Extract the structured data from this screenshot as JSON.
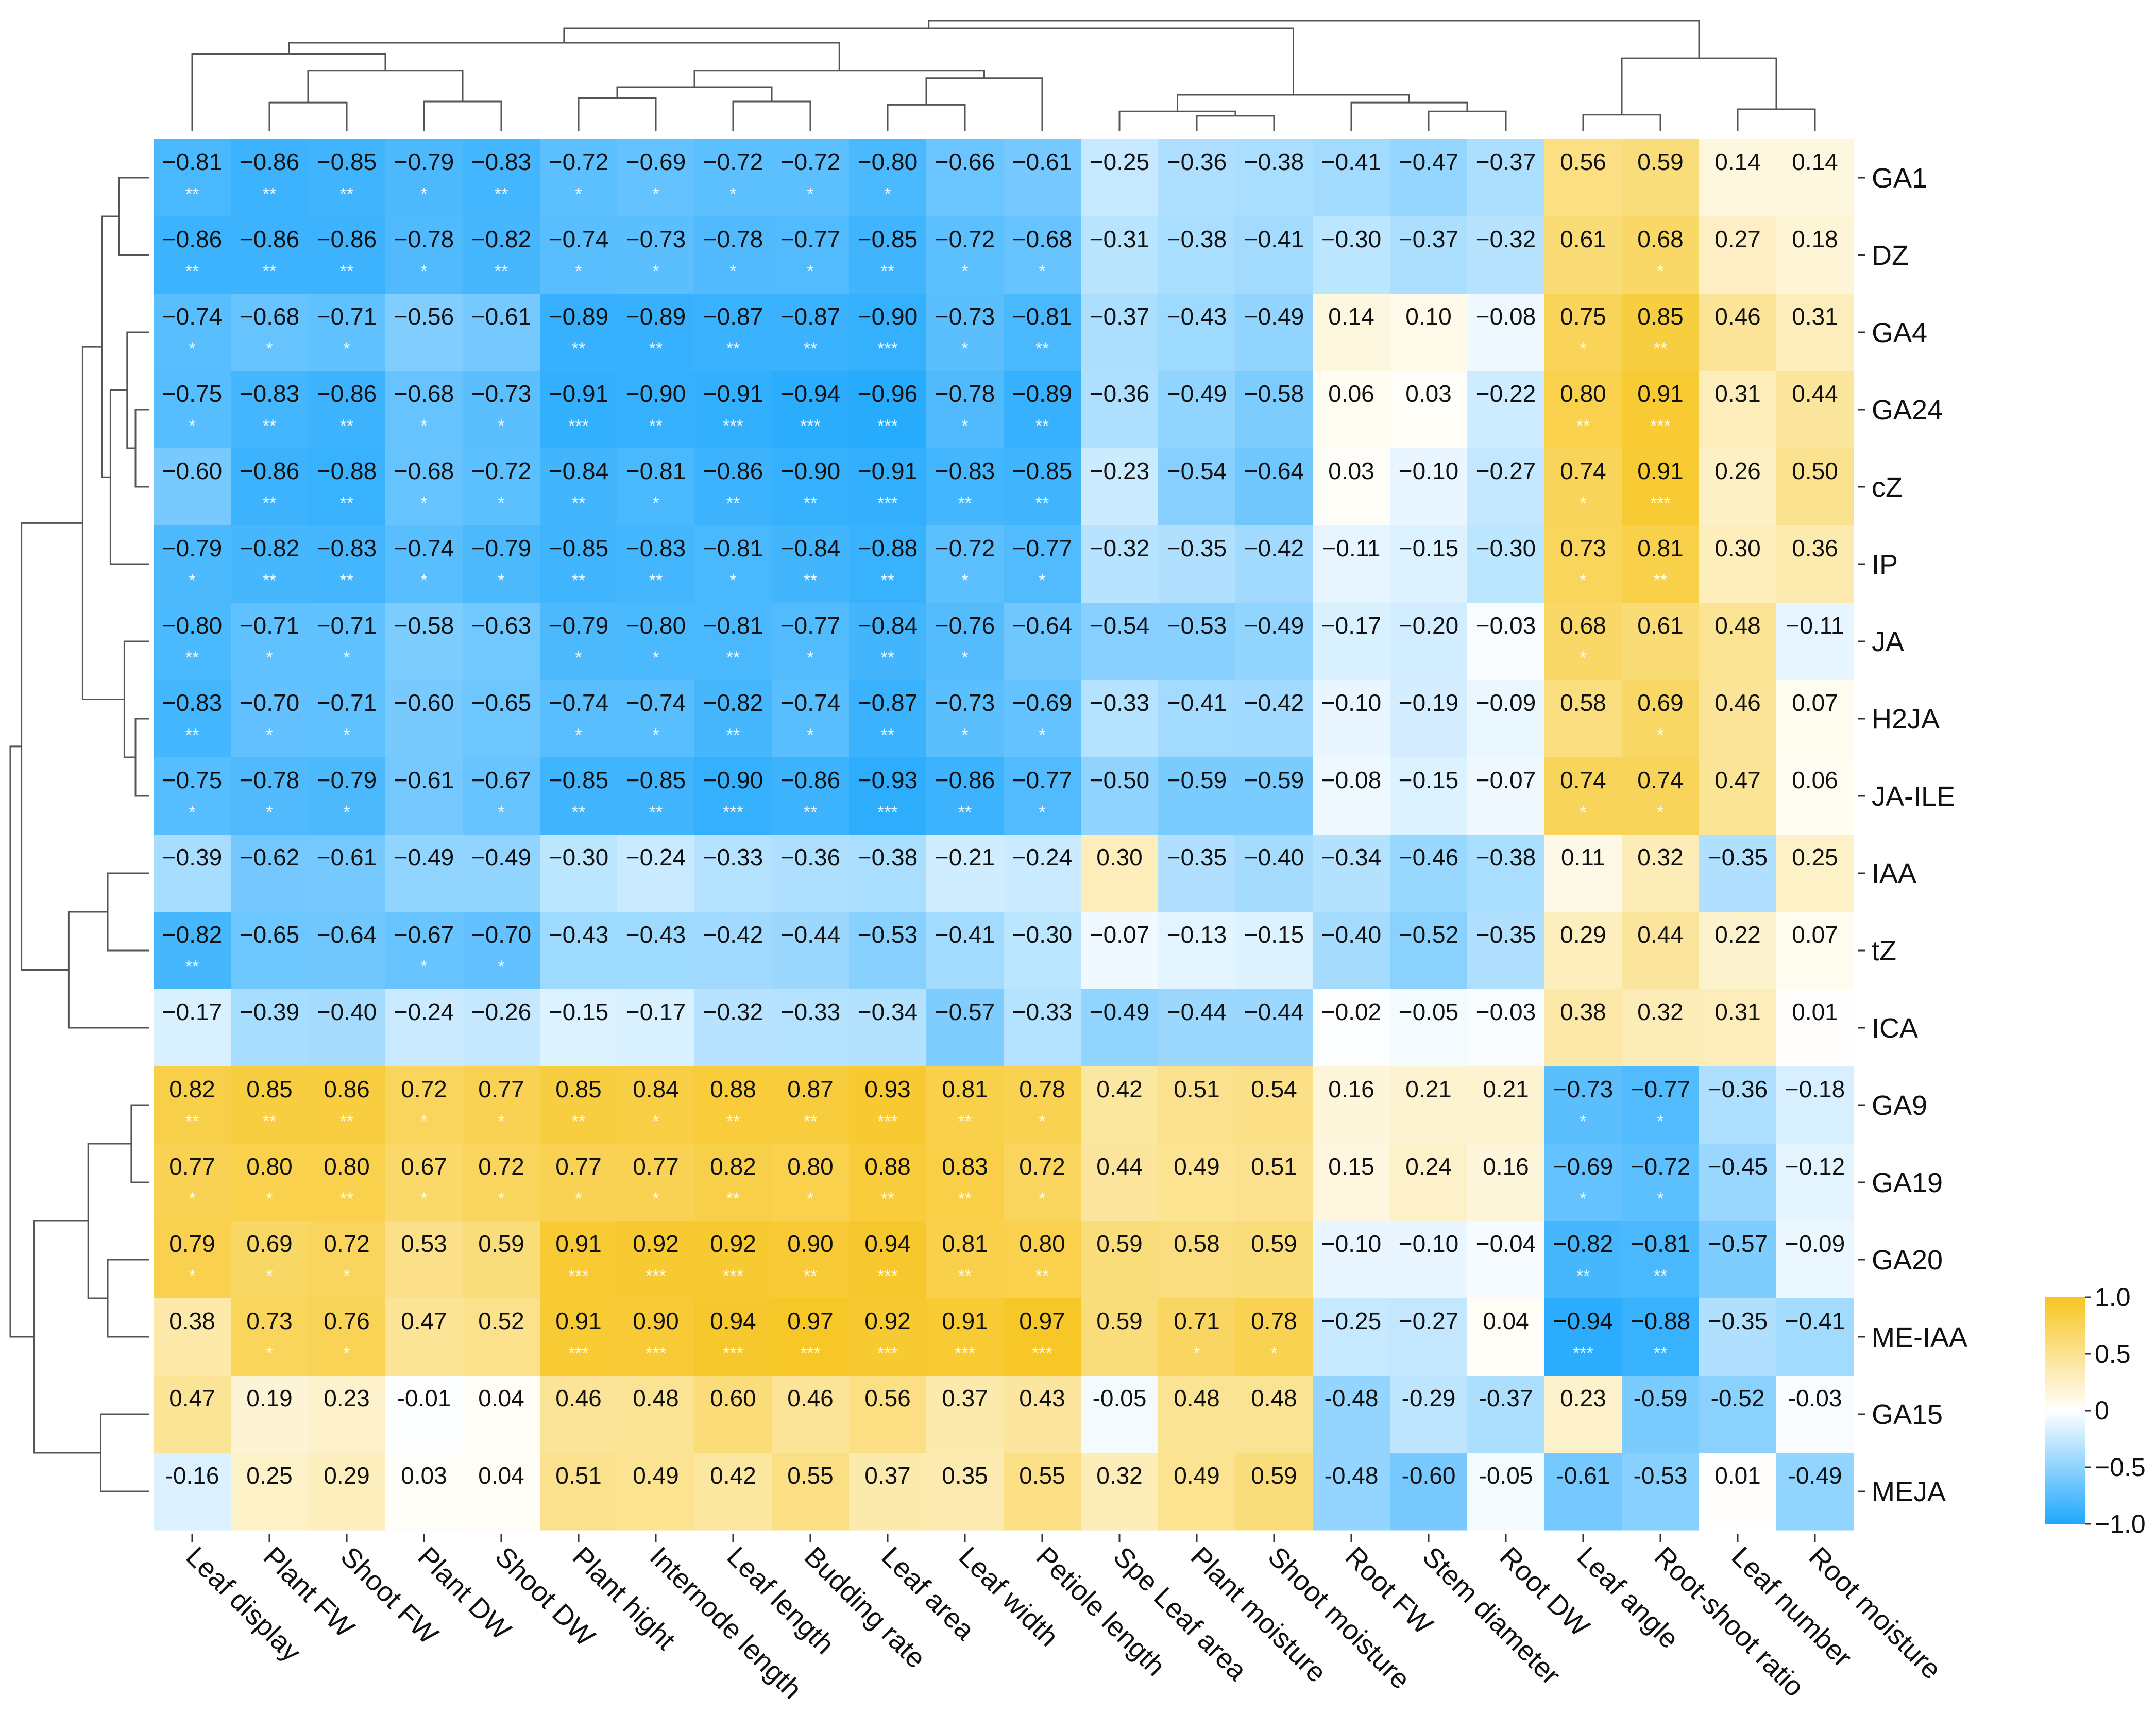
{
  "chart_data": {
    "type": "heatmap",
    "title": "",
    "xlabel": "",
    "ylabel": "",
    "columns": [
      "Leaf display",
      "Plant FW",
      "Shoot FW",
      "Plant DW",
      "Shoot DW",
      "Plant hight",
      "Internode length",
      "Leaf length",
      "Budding rate",
      "Leaf area",
      "Leaf width",
      "Petiole length",
      "Spe Leaf area",
      "Plant moisture",
      "Shoot moisture",
      "Root FW",
      "Stem diameter",
      "Root DW",
      "Leaf angle",
      "Root-shoot ratio",
      "Leaf number",
      "Root moisture"
    ],
    "rows": [
      "GA1",
      "DZ",
      "GA4",
      "GA24",
      "cZ",
      "IP",
      "JA",
      "H2JA",
      "JA-ILE",
      "IAA",
      "tZ",
      "ICA",
      "GA9",
      "GA19",
      "GA20",
      "ME-IAA",
      "GA15",
      "MEJA"
    ],
    "value_labels": [
      [
        "−0.81",
        "−0.86",
        "−0.85",
        "−0.79",
        "−0.83",
        "−0.72",
        "−0.69",
        "−0.72",
        "−0.72",
        "−0.80",
        "−0.66",
        "−0.61",
        "−0.25",
        "−0.36",
        "−0.38",
        "−0.41",
        "−0.47",
        "−0.37",
        "0.56",
        "0.59",
        "0.14",
        "0.14"
      ],
      [
        "−0.86",
        "−0.86",
        "−0.86",
        "−0.78",
        "−0.82",
        "−0.74",
        "−0.73",
        "−0.78",
        "−0.77",
        "−0.85",
        "−0.72",
        "−0.68",
        "−0.31",
        "−0.38",
        "−0.41",
        "−0.30",
        "−0.37",
        "−0.32",
        "0.61",
        "0.68",
        "0.27",
        "0.18"
      ],
      [
        "−0.74",
        "−0.68",
        "−0.71",
        "−0.56",
        "−0.61",
        "−0.89",
        "−0.89",
        "−0.87",
        "−0.87",
        "−0.90",
        "−0.73",
        "−0.81",
        "−0.37",
        "−0.43",
        "−0.49",
        "0.14",
        "0.10",
        "−0.08",
        "0.75",
        "0.85",
        "0.46",
        "0.31"
      ],
      [
        "−0.75",
        "−0.83",
        "−0.86",
        "−0.68",
        "−0.73",
        "−0.91",
        "−0.90",
        "−0.91",
        "−0.94",
        "−0.96",
        "−0.78",
        "−0.89",
        "−0.36",
        "−0.49",
        "−0.58",
        "0.06",
        "0.03",
        "−0.22",
        "0.80",
        "0.91",
        "0.31",
        "0.44"
      ],
      [
        "−0.60",
        "−0.86",
        "−0.88",
        "−0.68",
        "−0.72",
        "−0.84",
        "−0.81",
        "−0.86",
        "−0.90",
        "−0.91",
        "−0.83",
        "−0.85",
        "−0.23",
        "−0.54",
        "−0.64",
        "0.03",
        "−0.10",
        "−0.27",
        "0.74",
        "0.91",
        "0.26",
        "0.50"
      ],
      [
        "−0.79",
        "−0.82",
        "−0.83",
        "−0.74",
        "−0.79",
        "−0.85",
        "−0.83",
        "−0.81",
        "−0.84",
        "−0.88",
        "−0.72",
        "−0.77",
        "−0.32",
        "−0.35",
        "−0.42",
        "−0.11",
        "−0.15",
        "−0.30",
        "0.73",
        "0.81",
        "0.30",
        "0.36"
      ],
      [
        "−0.80",
        "−0.71",
        "−0.71",
        "−0.58",
        "−0.63",
        "−0.79",
        "−0.80",
        "−0.81",
        "−0.77",
        "−0.84",
        "−0.76",
        "−0.64",
        "−0.54",
        "−0.53",
        "−0.49",
        "−0.17",
        "−0.20",
        "−0.03",
        "0.68",
        "0.61",
        "0.48",
        "−0.11"
      ],
      [
        "−0.83",
        "−0.70",
        "−0.71",
        "−0.60",
        "−0.65",
        "−0.74",
        "−0.74",
        "−0.82",
        "−0.74",
        "−0.87",
        "−0.73",
        "−0.69",
        "−0.33",
        "−0.41",
        "−0.42",
        "−0.10",
        "−0.19",
        "−0.09",
        "0.58",
        "0.69",
        "0.46",
        "0.07"
      ],
      [
        "−0.75",
        "−0.78",
        "−0.79",
        "−0.61",
        "−0.67",
        "−0.85",
        "−0.85",
        "−0.90",
        "−0.86",
        "−0.93",
        "−0.86",
        "−0.77",
        "−0.50",
        "−0.59",
        "−0.59",
        "−0.08",
        "−0.15",
        "−0.07",
        "0.74",
        "0.74",
        "0.47",
        "0.06"
      ],
      [
        "−0.39",
        "−0.62",
        "−0.61",
        "−0.49",
        "−0.49",
        "−0.30",
        "−0.24",
        "−0.33",
        "−0.36",
        "−0.38",
        "−0.21",
        "−0.24",
        "0.30",
        "−0.35",
        "−0.40",
        "−0.34",
        "−0.46",
        "−0.38",
        "0.11",
        "0.32",
        "−0.35",
        "0.25"
      ],
      [
        "−0.82",
        "−0.65",
        "−0.64",
        "−0.67",
        "−0.70",
        "−0.43",
        "−0.43",
        "−0.42",
        "−0.44",
        "−0.53",
        "−0.41",
        "−0.30",
        "−0.07",
        "−0.13",
        "−0.15",
        "−0.40",
        "−0.52",
        "−0.35",
        "0.29",
        "0.44",
        "0.22",
        "0.07"
      ],
      [
        "−0.17",
        "−0.39",
        "−0.40",
        "−0.24",
        "−0.26",
        "−0.15",
        "−0.17",
        "−0.32",
        "−0.33",
        "−0.34",
        "−0.57",
        "−0.33",
        "−0.49",
        "−0.44",
        "−0.44",
        "−0.02",
        "−0.05",
        "−0.03",
        "0.38",
        "0.32",
        "0.31",
        "0.01"
      ],
      [
        "0.82",
        "0.85",
        "0.86",
        "0.72",
        "0.77",
        "0.85",
        "0.84",
        "0.88",
        "0.87",
        "0.93",
        "0.81",
        "0.78",
        "0.42",
        "0.51",
        "0.54",
        "0.16",
        "0.21",
        "0.21",
        "−0.73",
        "−0.77",
        "−0.36",
        "−0.18"
      ],
      [
        "0.77",
        "0.80",
        "0.80",
        "0.67",
        "0.72",
        "0.77",
        "0.77",
        "0.82",
        "0.80",
        "0.88",
        "0.83",
        "0.72",
        "0.44",
        "0.49",
        "0.51",
        "0.15",
        "0.24",
        "0.16",
        "−0.69",
        "−0.72",
        "−0.45",
        "−0.12"
      ],
      [
        "0.79",
        "0.69",
        "0.72",
        "0.53",
        "0.59",
        "0.91",
        "0.92",
        "0.92",
        "0.90",
        "0.94",
        "0.81",
        "0.80",
        "0.59",
        "0.58",
        "0.59",
        "−0.10",
        "−0.10",
        "−0.04",
        "−0.82",
        "−0.81",
        "−0.57",
        "−0.09"
      ],
      [
        "0.38",
        "0.73",
        "0.76",
        "0.47",
        "0.52",
        "0.91",
        "0.90",
        "0.94",
        "0.97",
        "0.92",
        "0.91",
        "0.97",
        "0.59",
        "0.71",
        "0.78",
        "−0.25",
        "−0.27",
        "0.04",
        "−0.94",
        "−0.88",
        "−0.35",
        "−0.41"
      ],
      [
        "0.47",
        "0.19",
        "0.23",
        "-0.01",
        "0.04",
        "0.46",
        "0.48",
        "0.60",
        "0.46",
        "0.56",
        "0.37",
        "0.43",
        "-0.05",
        "0.48",
        "0.48",
        "-0.48",
        "-0.29",
        "-0.37",
        "0.23",
        "-0.59",
        "-0.52",
        "-0.03"
      ],
      [
        "-0.16",
        "0.25",
        "0.29",
        "0.03",
        "0.04",
        "0.51",
        "0.49",
        "0.42",
        "0.55",
        "0.37",
        "0.35",
        "0.55",
        "0.32",
        "0.49",
        "0.59",
        "-0.48",
        "-0.60",
        "-0.05",
        "-0.61",
        "-0.53",
        "0.01",
        "-0.49"
      ]
    ],
    "significance": [
      [
        "**",
        "**",
        "**",
        "*",
        "**",
        "*",
        "*",
        "*",
        "*",
        "*",
        "",
        "",
        "",
        "",
        "",
        "",
        "",
        "",
        "",
        "",
        "",
        ""
      ],
      [
        "**",
        "**",
        "**",
        "*",
        "**",
        "*",
        "*",
        "*",
        "*",
        "**",
        "*",
        "*",
        "",
        "",
        "",
        "",
        "",
        "",
        "",
        "*",
        "",
        ""
      ],
      [
        "*",
        "*",
        "*",
        "",
        "",
        "**",
        "**",
        "**",
        "**",
        "***",
        "*",
        "**",
        "",
        "",
        "",
        "",
        "",
        "",
        "*",
        "**",
        "",
        ""
      ],
      [
        "*",
        "**",
        "**",
        "*",
        "*",
        "***",
        "**",
        "***",
        "***",
        "***",
        "*",
        "**",
        "",
        "",
        "",
        "",
        "",
        "",
        "**",
        "***",
        "",
        ""
      ],
      [
        "",
        "**",
        "**",
        "*",
        "*",
        "**",
        "*",
        "**",
        "**",
        "***",
        "**",
        "**",
        "",
        "",
        "",
        "",
        "",
        "",
        "*",
        "***",
        "",
        ""
      ],
      [
        "*",
        "**",
        "**",
        "*",
        "*",
        "**",
        "**",
        "*",
        "**",
        "**",
        "*",
        "*",
        "",
        "",
        "",
        "",
        "",
        "",
        "*",
        "**",
        "",
        ""
      ],
      [
        "**",
        "*",
        "*",
        "",
        "",
        "*",
        "*",
        "**",
        "*",
        "**",
        "*",
        "",
        "",
        "",
        "",
        "",
        "",
        "",
        "*",
        "",
        "",
        ""
      ],
      [
        "**",
        "*",
        "*",
        "",
        "",
        "*",
        "*",
        "**",
        "*",
        "**",
        "*",
        "*",
        "",
        "",
        "",
        "",
        "",
        "",
        "",
        "*",
        "",
        ""
      ],
      [
        "*",
        "*",
        "*",
        "",
        "*",
        "**",
        "**",
        "***",
        "**",
        "***",
        "**",
        "*",
        "",
        "",
        "",
        "",
        "",
        "",
        "*",
        "*",
        "",
        ""
      ],
      [
        "",
        "",
        "",
        "",
        "",
        "",
        "",
        "",
        "",
        "",
        "",
        "",
        "",
        "",
        "",
        "",
        "",
        "",
        "",
        "",
        "",
        ""
      ],
      [
        "**",
        "",
        "",
        "*",
        "*",
        "",
        "",
        "",
        "",
        "",
        "",
        "",
        "",
        "",
        "",
        "",
        "",
        "",
        "",
        "",
        "",
        ""
      ],
      [
        "",
        "",
        "",
        "",
        "",
        "",
        "",
        "",
        "",
        "",
        "",
        "",
        "",
        "",
        "",
        "",
        "",
        "",
        "",
        "",
        "",
        ""
      ],
      [
        "**",
        "**",
        "**",
        "*",
        "*",
        "**",
        "*",
        "**",
        "**",
        "***",
        "**",
        "*",
        "",
        "",
        "",
        "",
        "",
        "",
        "*",
        "*",
        "",
        ""
      ],
      [
        "*",
        "*",
        "**",
        "*",
        "*",
        "*",
        "*",
        "**",
        "*",
        "**",
        "**",
        "*",
        "",
        "",
        "",
        "",
        "",
        "",
        "*",
        "*",
        "",
        ""
      ],
      [
        "*",
        "*",
        "*",
        "",
        "",
        "***",
        "***",
        "***",
        "**",
        "***",
        "**",
        "**",
        "",
        "",
        "",
        "",
        "",
        "",
        "**",
        "**",
        "",
        ""
      ],
      [
        "",
        "*",
        "*",
        "",
        "",
        "***",
        "***",
        "***",
        "***",
        "***",
        "***",
        "***",
        "",
        "*",
        "*",
        "",
        "",
        "",
        "***",
        "**",
        "",
        ""
      ],
      [
        "",
        "",
        "",
        "",
        "",
        "",
        "",
        "",
        "",
        "",
        "",
        "",
        "",
        "",
        "",
        "",
        "",
        "",
        "",
        "",
        "",
        ""
      ],
      [
        "",
        "",
        "",
        "",
        "",
        "",
        "",
        "",
        "",
        "",
        "",
        "",
        "",
        "",
        "",
        "",
        "",
        "",
        "",
        "",
        "",
        ""
      ]
    ],
    "color_scale": {
      "min": -1.0,
      "max": 1.0,
      "low_color": "#1ea7fd",
      "mid_color": "#ffffff",
      "high_color": "#f7c520"
    },
    "legend": {
      "ticks": [
        "1.0",
        "0.5",
        "0",
        "−0.5",
        "−1.0"
      ],
      "tick_values": [
        1.0,
        0.5,
        0,
        -0.5,
        -1.0
      ],
      "placement": "right"
    },
    "column_dendrogram": true,
    "row_dendrogram": true
  }
}
